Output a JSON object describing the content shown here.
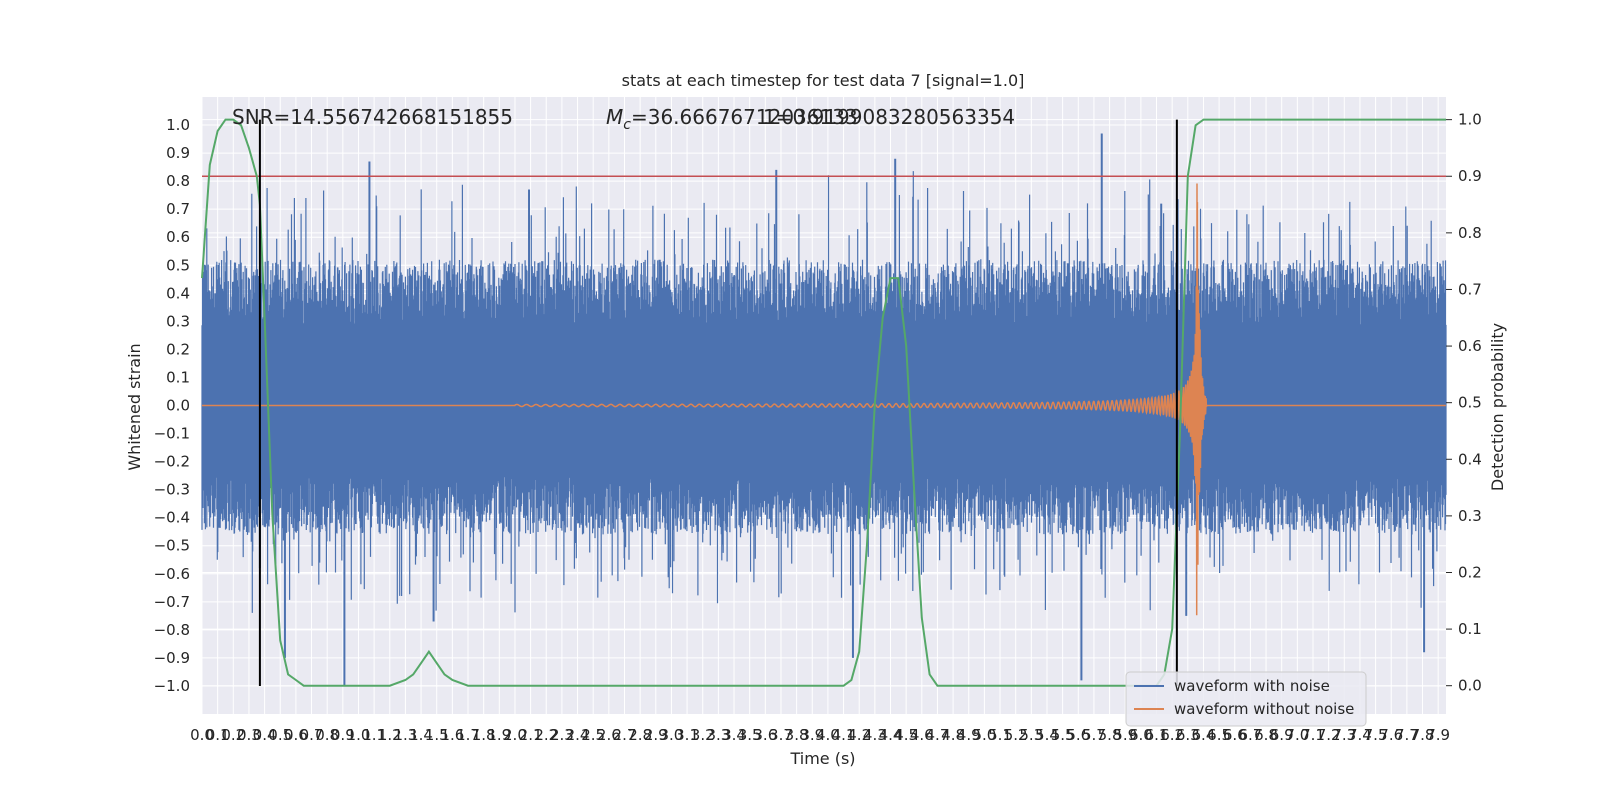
{
  "chart_data": {
    "type": "line",
    "title": "stats at each timestep for test data 7 [signal=1.0]",
    "xlabel": "Time (s)",
    "ylabel": "Whitened strain",
    "y2label": "Detection probability",
    "xlim": [
      0.0,
      7.95
    ],
    "ylim": [
      -1.1,
      1.1
    ],
    "y2lim": [
      -0.05,
      1.04
    ],
    "grid": true,
    "x_ticks": [
      "0.0",
      "0.1",
      "0.2",
      "0.3",
      "0.4",
      "0.5",
      "0.6",
      "0.7",
      "0.8",
      "0.9",
      "1.0",
      "1.1",
      "1.2",
      "1.3",
      "1.4",
      "1.5",
      "1.6",
      "1.7",
      "1.8",
      "1.9",
      "2.0",
      "2.1",
      "2.2",
      "2.3",
      "2.4",
      "2.5",
      "2.6",
      "2.7",
      "2.8",
      "2.9",
      "3.0",
      "3.1",
      "3.2",
      "3.3",
      "3.4",
      "3.5",
      "3.6",
      "3.7",
      "3.8",
      "3.9",
      "4.0",
      "4.1",
      "4.2",
      "4.3",
      "4.4",
      "4.5",
      "4.6",
      "4.7",
      "4.8",
      "4.9",
      "5.0",
      "5.1",
      "5.2",
      "5.3",
      "5.4",
      "5.5",
      "5.6",
      "5.7",
      "5.8",
      "5.9",
      "6.0",
      "6.1",
      "6.2",
      "6.3",
      "6.4",
      "6.5",
      "6.6",
      "6.7",
      "6.8",
      "6.9",
      "7.0",
      "7.1",
      "7.2",
      "7.3",
      "7.4",
      "7.5",
      "7.6",
      "7.7",
      "7.8",
      "7.9"
    ],
    "y_ticks": [
      "1.0",
      "0.9",
      "0.8",
      "0.7",
      "0.6",
      "0.5",
      "0.4",
      "0.3",
      "0.2",
      "0.1",
      "0.0",
      "−0.1",
      "−0.2",
      "−0.3",
      "−0.4",
      "−0.5",
      "−0.6",
      "−0.7",
      "−0.8",
      "−0.9",
      "−1.0"
    ],
    "y2_ticks": [
      "1.0",
      "0.9",
      "0.8",
      "0.7",
      "0.6",
      "0.5",
      "0.4",
      "0.3",
      "0.2",
      "0.1",
      "0.0"
    ],
    "annotations": {
      "snr": "SNR=14.556742668151855",
      "mc_symbol": "M",
      "mc_sub": "c",
      "mc_value": "=36.66676712036133",
      "overlap": "1=0.9199083280563354"
    },
    "colors": {
      "background": "#eaeaf2",
      "noise": "#4c72b0",
      "clean": "#dd8452",
      "prob": "#55a868",
      "threshold": "#c44e52",
      "marker": "#000000"
    },
    "threshold": 0.9,
    "vertical_markers": [
      0.37,
      6.23
    ],
    "series": [
      {
        "name": "waveform with noise",
        "envelope_upper": 0.52,
        "envelope_lower": -0.46,
        "noise_spikes": [
          [
            0.37,
            -0.58
          ],
          [
            0.53,
            -0.9
          ],
          [
            0.91,
            -1.0
          ],
          [
            1.07,
            0.87
          ],
          [
            1.48,
            -0.77
          ],
          [
            2.09,
            0.77
          ],
          [
            3.67,
            0.84
          ],
          [
            4.16,
            -0.9
          ],
          [
            4.43,
            0.88
          ],
          [
            5.62,
            -0.98
          ],
          [
            5.75,
            0.97
          ],
          [
            6.13,
            0.72
          ],
          [
            6.29,
            -0.75
          ],
          [
            7.81,
            -0.88
          ]
        ]
      },
      {
        "name": "waveform without noise",
        "chirp_start": 2.0,
        "merger_time": 6.36,
        "peak_amplitude": 0.8,
        "ringdown_end": 6.42
      },
      {
        "name": "detection probability",
        "x": [
          0.0,
          0.05,
          0.1,
          0.15,
          0.2,
          0.25,
          0.3,
          0.35,
          0.37,
          0.4,
          0.45,
          0.5,
          0.55,
          0.6,
          0.65,
          0.7,
          0.8,
          1.0,
          1.1,
          1.2,
          1.3,
          1.35,
          1.4,
          1.45,
          1.5,
          1.55,
          1.6,
          1.7,
          1.8,
          2.0,
          2.5,
          3.0,
          3.5,
          3.7,
          3.8,
          3.9,
          4.0,
          4.1,
          4.15,
          4.2,
          4.25,
          4.3,
          4.35,
          4.4,
          4.45,
          4.5,
          4.55,
          4.6,
          4.65,
          4.7,
          4.75,
          4.8,
          4.9,
          5.0,
          5.5,
          6.0,
          6.1,
          6.15,
          6.2,
          6.25,
          6.3,
          6.35,
          6.4,
          7.0,
          7.5,
          7.95
        ],
        "y": [
          0.72,
          0.92,
          0.98,
          1.0,
          1.0,
          0.99,
          0.95,
          0.9,
          0.85,
          0.65,
          0.3,
          0.08,
          0.02,
          0.01,
          0.0,
          0.0,
          0.0,
          0.0,
          0.0,
          0.0,
          0.01,
          0.02,
          0.04,
          0.06,
          0.04,
          0.02,
          0.01,
          0.0,
          0.0,
          0.0,
          0.0,
          0.0,
          0.0,
          0.0,
          0.0,
          0.0,
          0.0,
          0.0,
          0.01,
          0.06,
          0.25,
          0.5,
          0.65,
          0.72,
          0.72,
          0.6,
          0.35,
          0.12,
          0.02,
          0.0,
          0.0,
          0.0,
          0.0,
          0.0,
          0.0,
          0.0,
          0.0,
          0.02,
          0.1,
          0.45,
          0.9,
          0.99,
          1.0,
          1.0,
          1.0,
          1.0
        ]
      }
    ],
    "legend": {
      "placement": "lower-right",
      "entries": [
        "waveform with noise",
        "waveform without noise"
      ]
    }
  }
}
